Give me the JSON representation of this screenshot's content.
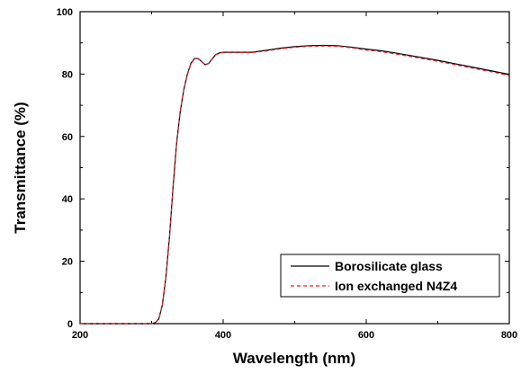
{
  "chart_data": {
    "type": "line",
    "xlabel": "Wavelength (nm)",
    "ylabel": "Transmittance (%)",
    "xlim": [
      200,
      800
    ],
    "ylim": [
      0,
      100
    ],
    "xticks": [
      200,
      400,
      600,
      800
    ],
    "yticks": [
      0,
      20,
      40,
      60,
      80,
      100
    ],
    "grid": false,
    "legend_position": "bottom-right",
    "series": [
      {
        "name": "Borosilicate glass",
        "color": "#000000",
        "style": "solid",
        "x": [
          200,
          300,
          305,
          310,
          315,
          320,
          325,
          330,
          335,
          340,
          345,
          350,
          355,
          360,
          365,
          370,
          375,
          380,
          385,
          390,
          395,
          400,
          420,
          440,
          460,
          480,
          500,
          520,
          540,
          560,
          580,
          600,
          620,
          640,
          660,
          680,
          700,
          720,
          740,
          760,
          780,
          800
        ],
        "y": [
          0,
          0,
          0.3,
          1.5,
          6,
          15,
          28,
          44,
          58,
          68,
          75,
          80,
          83.5,
          85,
          85,
          84,
          83,
          83.5,
          85,
          86.3,
          86.8,
          87,
          87,
          87,
          87.6,
          88.3,
          88.8,
          89.1,
          89.2,
          89.1,
          88.6,
          88.0,
          87.5,
          86.8,
          86.0,
          85.2,
          84.4,
          83.5,
          82.6,
          81.7,
          80.8,
          79.9
        ]
      },
      {
        "name": "Ion exchanged N4Z4",
        "color": "#e8202a",
        "style": "dashed",
        "x": [
          200,
          300,
          305,
          310,
          315,
          320,
          325,
          330,
          335,
          340,
          345,
          350,
          355,
          360,
          365,
          370,
          375,
          380,
          385,
          390,
          395,
          400,
          420,
          440,
          460,
          480,
          500,
          520,
          540,
          560,
          580,
          600,
          620,
          640,
          660,
          680,
          700,
          720,
          740,
          760,
          780,
          800
        ],
        "y": [
          0,
          0,
          0.3,
          1.4,
          5.8,
          14.6,
          27.5,
          43.5,
          57.6,
          67.8,
          74.8,
          79.8,
          83.3,
          84.9,
          84.9,
          83.9,
          82.9,
          83.4,
          84.9,
          86.2,
          86.7,
          86.9,
          86.9,
          86.9,
          87.4,
          88.1,
          88.6,
          88.9,
          89.0,
          88.9,
          88.4,
          87.7,
          87.2,
          86.5,
          85.7,
          84.9,
          84.1,
          83.2,
          82.3,
          81.4,
          80.5,
          79.5
        ]
      }
    ]
  }
}
